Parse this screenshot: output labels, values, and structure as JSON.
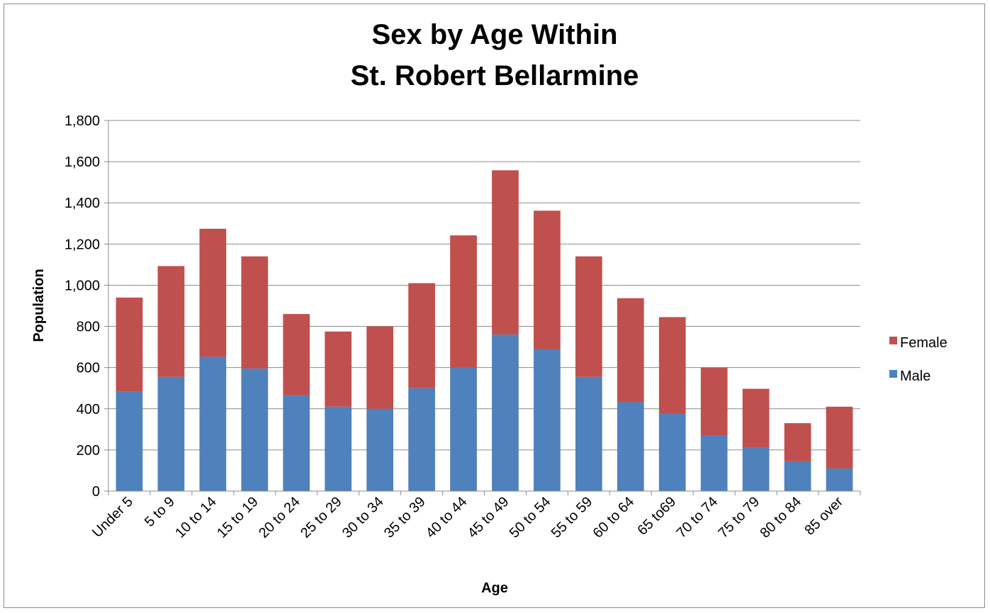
{
  "chart_data": {
    "type": "bar",
    "stacked": true,
    "title_lines": [
      "Sex by Age Within",
      "St. Robert Bellarmine"
    ],
    "xlabel": "Age",
    "ylabel": "Population",
    "ylim": [
      0,
      1800
    ],
    "ytick_step": 200,
    "ytick_labels": [
      "0",
      "200",
      "400",
      "600",
      "800",
      "1,000",
      "1,200",
      "1,400",
      "1,600",
      "1,800"
    ],
    "grid": true,
    "legend_position": "right",
    "categories": [
      "Under 5",
      "5 to 9",
      "10 to 14",
      "15 to 19",
      "20 to 24",
      "25 to 29",
      "30 to 34",
      "35 to 39",
      "40 to 44",
      "45 to 49",
      "50 to 54",
      "55 to 59",
      "60 to 64",
      "65 to69",
      "70 to 74",
      "75 to 79",
      "80 to 84",
      "85 over"
    ],
    "series": [
      {
        "name": "Male",
        "color": "#4f81bd",
        "values": [
          485,
          555,
          652,
          595,
          465,
          410,
          400,
          500,
          600,
          760,
          690,
          555,
          432,
          375,
          270,
          212,
          145,
          110
        ]
      },
      {
        "name": "Female",
        "color": "#c0504d",
        "values": [
          455,
          538,
          622,
          545,
          395,
          365,
          400,
          510,
          642,
          798,
          672,
          585,
          505,
          470,
          330,
          285,
          185,
          300
        ]
      }
    ]
  }
}
